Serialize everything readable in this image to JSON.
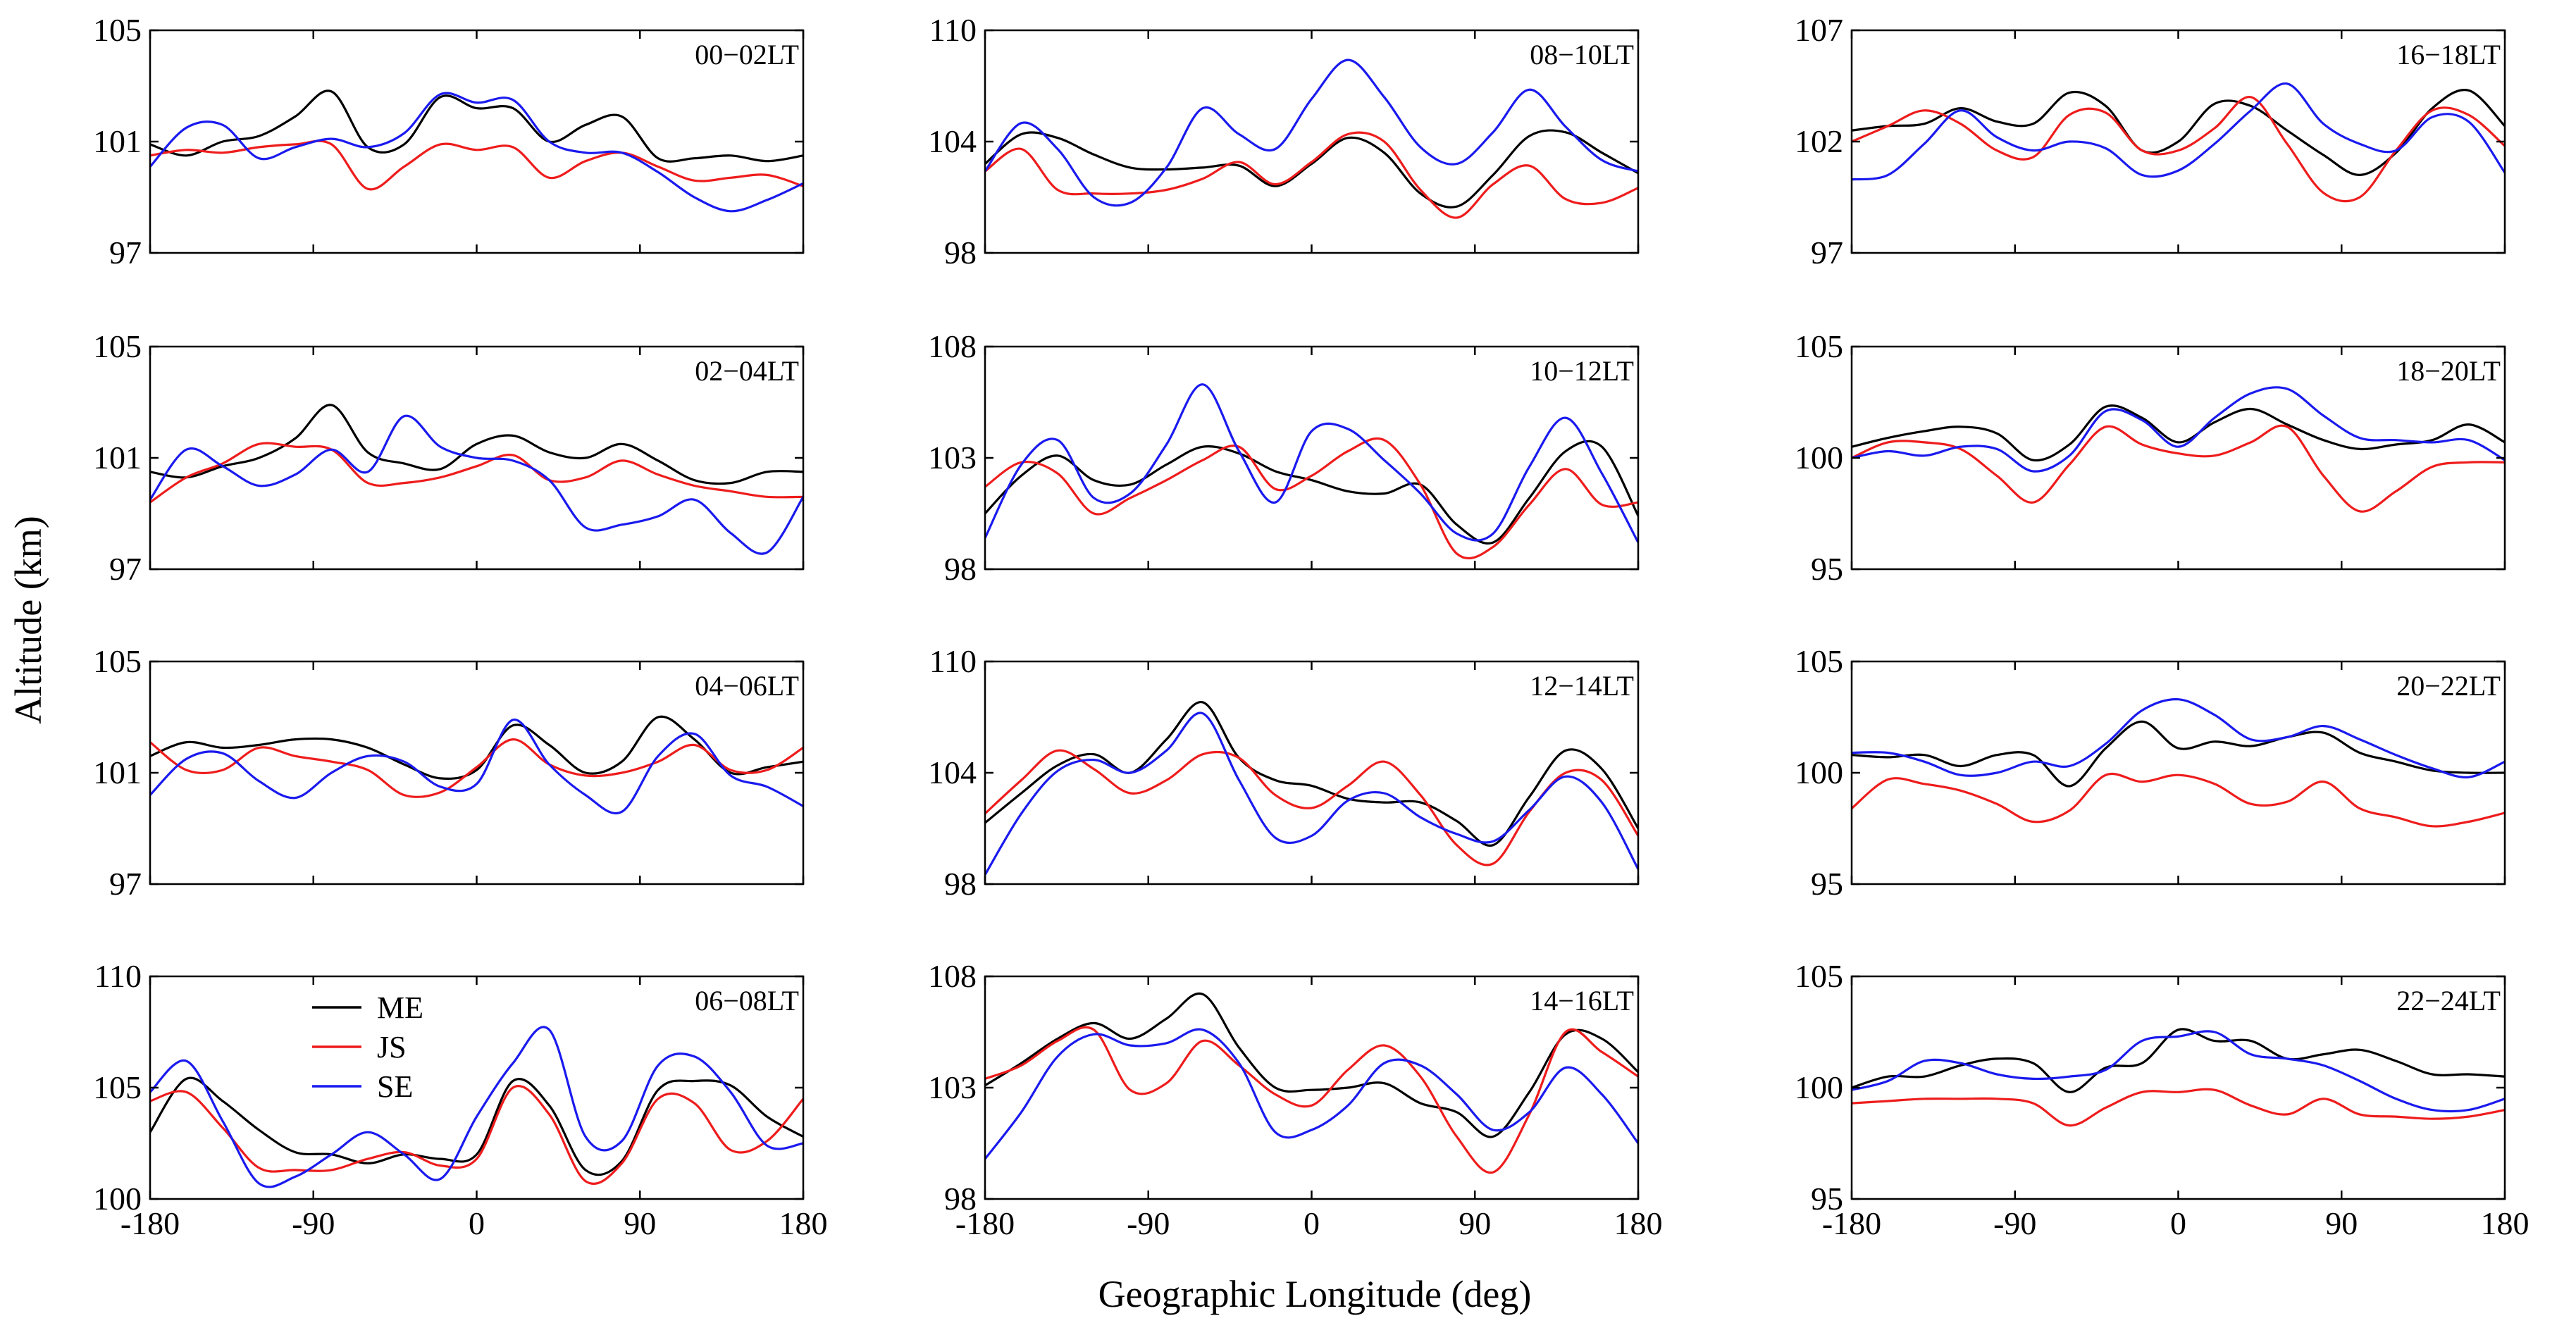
{
  "chart_data": {
    "type": "line",
    "layout": "4x3 grid of small-multiple panels (columns left to right, rows top to bottom)",
    "ylabel": "Altitude (km)",
    "xlabel": "Geographic Longitude (deg)",
    "x": [
      -180,
      -160,
      -140,
      -120,
      -100,
      -80,
      -60,
      -40,
      -20,
      0,
      20,
      40,
      60,
      80,
      100,
      120,
      140,
      160,
      180
    ],
    "xticks": [
      -180,
      -90,
      0,
      90,
      180
    ],
    "xtick_labels": [
      "-180",
      "-90",
      "0",
      "90",
      "180"
    ],
    "legend": {
      "panel": "06-08LT",
      "placement": "upper-left",
      "entries": [
        {
          "key": "ME",
          "label": "ME"
        },
        {
          "key": "JS",
          "label": "JS"
        },
        {
          "key": "SE",
          "label": "SE"
        }
      ]
    },
    "series_colors": {
      "ME": "#000000",
      "JS": "#ee1c1c",
      "SE": "#1a1aee"
    },
    "panels": [
      {
        "id": "p00",
        "label": "00−02LT",
        "col": 0,
        "row": 0,
        "ylim": [
          97,
          105
        ],
        "yticks": [
          97,
          101,
          105
        ],
        "series": {
          "ME": [
            100.9,
            100.5,
            101.0,
            101.2,
            101.9,
            102.8,
            100.8,
            100.9,
            102.6,
            102.2,
            102.2,
            101.0,
            101.6,
            101.9,
            100.4,
            100.4,
            100.5,
            100.3,
            100.5
          ],
          "JS": [
            100.5,
            100.7,
            100.6,
            100.8,
            100.9,
            100.9,
            99.3,
            100.1,
            100.9,
            100.7,
            100.8,
            99.7,
            100.3,
            100.6,
            100.1,
            99.6,
            99.7,
            99.8,
            99.4
          ],
          "SE": [
            100.1,
            101.5,
            101.6,
            100.4,
            100.8,
            101.1,
            100.8,
            101.3,
            102.7,
            102.4,
            102.5,
            101.0,
            100.6,
            100.6,
            99.9,
            99.0,
            98.5,
            98.9,
            99.5
          ]
        }
      },
      {
        "id": "p01",
        "label": "02−04LT",
        "col": 0,
        "row": 1,
        "ylim": [
          97,
          105
        ],
        "yticks": [
          97,
          101,
          105
        ],
        "series": {
          "ME": [
            100.5,
            100.3,
            100.7,
            101.0,
            101.7,
            102.9,
            101.2,
            100.8,
            100.6,
            101.5,
            101.8,
            101.2,
            101.0,
            101.5,
            100.9,
            100.2,
            100.1,
            100.5,
            100.5
          ],
          "JS": [
            99.4,
            100.3,
            100.8,
            101.5,
            101.4,
            101.3,
            100.1,
            100.1,
            100.3,
            100.7,
            101.1,
            100.2,
            100.3,
            100.9,
            100.4,
            100.0,
            99.8,
            99.6,
            99.6
          ],
          "SE": [
            99.5,
            101.3,
            100.7,
            100.0,
            100.4,
            101.3,
            100.5,
            102.5,
            101.4,
            101.0,
            100.9,
            100.2,
            98.5,
            98.6,
            98.9,
            99.5,
            98.3,
            97.6,
            99.6
          ]
        }
      },
      {
        "id": "p02",
        "label": "04−06LT",
        "col": 0,
        "row": 2,
        "ylim": [
          97,
          105
        ],
        "yticks": [
          97,
          101,
          105
        ],
        "series": {
          "ME": [
            101.6,
            102.1,
            101.9,
            102.0,
            102.2,
            102.2,
            101.9,
            101.3,
            100.8,
            101.1,
            102.7,
            102.0,
            101.0,
            101.4,
            103.0,
            102.2,
            101.0,
            101.2,
            101.4
          ],
          "JS": [
            102.1,
            101.1,
            101.1,
            101.9,
            101.6,
            101.4,
            101.1,
            100.2,
            100.3,
            101.2,
            102.2,
            101.3,
            100.9,
            101.0,
            101.4,
            102.0,
            101.1,
            101.1,
            101.9
          ],
          "SE": [
            100.2,
            101.5,
            101.7,
            100.7,
            100.1,
            101.0,
            101.6,
            101.4,
            100.5,
            100.6,
            102.9,
            101.3,
            100.2,
            99.6,
            101.6,
            102.4,
            100.9,
            100.5,
            99.8
          ]
        }
      },
      {
        "id": "p03",
        "label": "06−08LT",
        "col": 0,
        "row": 3,
        "ylim": [
          100,
          110
        ],
        "yticks": [
          100,
          105,
          110
        ],
        "series": {
          "ME": [
            103.0,
            105.4,
            104.4,
            103.1,
            102.1,
            102.0,
            101.6,
            102.0,
            101.8,
            102.0,
            105.3,
            104.2,
            101.3,
            101.7,
            104.9,
            105.3,
            105.1,
            103.7,
            102.8
          ],
          "JS": [
            104.4,
            104.8,
            103.2,
            101.4,
            101.3,
            101.3,
            101.8,
            102.1,
            101.5,
            101.8,
            105.0,
            103.8,
            100.8,
            101.6,
            104.5,
            104.3,
            102.2,
            102.6,
            104.5
          ],
          "SE": [
            104.8,
            106.2,
            103.5,
            100.7,
            101.0,
            102.0,
            103.0,
            102.0,
            100.9,
            103.7,
            106.1,
            107.6,
            102.8,
            102.6,
            106.0,
            106.4,
            104.8,
            102.4,
            102.5
          ]
        }
      },
      {
        "id": "p10",
        "label": "08−10LT",
        "col": 1,
        "row": 0,
        "ylim": [
          98,
          110
        ],
        "yticks": [
          98,
          104,
          110
        ],
        "series": {
          "ME": [
            102.8,
            104.4,
            104.2,
            103.3,
            102.6,
            102.5,
            102.6,
            102.7,
            101.6,
            102.8,
            104.2,
            103.4,
            101.2,
            100.5,
            102.2,
            104.3,
            104.5,
            103.4,
            102.3
          ],
          "JS": [
            102.4,
            103.6,
            101.4,
            101.2,
            101.2,
            101.4,
            102.0,
            102.9,
            101.7,
            102.9,
            104.4,
            104.0,
            101.4,
            99.9,
            101.7,
            102.7,
            100.9,
            100.7,
            101.5
          ],
          "SE": [
            102.4,
            105.0,
            103.6,
            101.0,
            100.7,
            102.6,
            105.8,
            104.4,
            103.6,
            106.3,
            108.4,
            106.4,
            103.7,
            102.8,
            104.5,
            106.8,
            104.8,
            103.0,
            102.4
          ]
        }
      },
      {
        "id": "p11",
        "label": "10−12LT",
        "col": 1,
        "row": 1,
        "ylim": [
          98,
          108
        ],
        "yticks": [
          98,
          103,
          108
        ],
        "series": {
          "ME": [
            100.5,
            102.2,
            103.1,
            102.0,
            101.8,
            102.7,
            103.5,
            103.2,
            102.4,
            102.0,
            101.5,
            101.4,
            101.8,
            100.0,
            99.2,
            101.2,
            103.3,
            103.5,
            100.4
          ],
          "JS": [
            101.7,
            102.8,
            102.3,
            100.5,
            101.2,
            102.0,
            102.9,
            103.5,
            101.6,
            102.2,
            103.3,
            103.8,
            101.8,
            98.7,
            99.0,
            100.9,
            102.5,
            100.9,
            101.0
          ],
          "SE": [
            99.4,
            102.7,
            103.8,
            101.2,
            101.4,
            103.6,
            106.3,
            103.3,
            101.0,
            104.2,
            104.3,
            102.9,
            101.4,
            99.6,
            99.6,
            102.6,
            104.8,
            102.3,
            99.2
          ]
        }
      },
      {
        "id": "p12",
        "label": "12−14LT",
        "col": 1,
        "row": 2,
        "ylim": [
          98,
          110
        ],
        "yticks": [
          98,
          104,
          110
        ],
        "series": {
          "ME": [
            101.3,
            102.9,
            104.4,
            105.0,
            104.0,
            105.8,
            107.8,
            104.8,
            103.6,
            103.3,
            102.6,
            102.4,
            102.4,
            101.4,
            100.1,
            102.7,
            105.2,
            104.2,
            101.0
          ],
          "JS": [
            101.8,
            103.6,
            105.2,
            104.2,
            102.9,
            103.6,
            105.0,
            104.8,
            102.8,
            102.1,
            103.3,
            104.6,
            102.8,
            100.1,
            99.1,
            101.9,
            104.0,
            103.6,
            100.6
          ],
          "SE": [
            98.5,
            101.8,
            104.1,
            104.7,
            104.0,
            105.2,
            107.2,
            103.6,
            100.5,
            100.6,
            102.5,
            102.9,
            101.6,
            100.7,
            100.3,
            102.0,
            103.8,
            102.4,
            98.8
          ]
        }
      },
      {
        "id": "p13",
        "label": "14−16LT",
        "col": 1,
        "row": 3,
        "ylim": [
          98,
          108
        ],
        "yticks": [
          98,
          103,
          108
        ],
        "series": {
          "ME": [
            103.1,
            104.1,
            105.2,
            105.9,
            105.2,
            106.1,
            107.2,
            104.8,
            103.0,
            102.9,
            103.0,
            103.2,
            102.3,
            101.9,
            100.8,
            102.8,
            105.4,
            105.2,
            103.7
          ],
          "JS": [
            103.4,
            104.0,
            105.1,
            105.6,
            102.9,
            103.2,
            105.1,
            104.0,
            102.7,
            102.2,
            103.8,
            104.9,
            103.5,
            100.8,
            99.2,
            101.8,
            105.5,
            104.6,
            103.5
          ],
          "SE": [
            99.8,
            101.9,
            104.4,
            105.4,
            104.9,
            105.0,
            105.6,
            104.1,
            101.0,
            101.1,
            102.2,
            104.1,
            104.0,
            102.7,
            101.1,
            101.9,
            103.9,
            102.7,
            100.5
          ]
        }
      },
      {
        "id": "p20",
        "label": "16−18LT",
        "col": 2,
        "row": 0,
        "ylim": [
          97,
          107
        ],
        "yticks": [
          97,
          102,
          107
        ],
        "series": {
          "ME": [
            102.5,
            102.7,
            102.8,
            103.5,
            102.9,
            102.8,
            104.2,
            103.6,
            101.6,
            102.0,
            103.7,
            103.6,
            102.5,
            101.4,
            100.5,
            101.5,
            103.5,
            104.3,
            102.7
          ],
          "JS": [
            102.0,
            102.7,
            103.4,
            102.8,
            101.6,
            101.3,
            103.2,
            103.3,
            101.6,
            101.6,
            102.6,
            104.0,
            101.9,
            99.7,
            99.5,
            101.6,
            103.4,
            103.2,
            101.8
          ],
          "SE": [
            100.3,
            100.5,
            101.9,
            103.4,
            102.2,
            101.6,
            102.0,
            101.7,
            100.5,
            100.7,
            101.9,
            103.4,
            104.6,
            102.8,
            101.9,
            101.6,
            103.1,
            102.9,
            100.6
          ]
        }
      },
      {
        "id": "p21",
        "label": "18−20LT",
        "col": 2,
        "row": 1,
        "ylim": [
          95,
          105
        ],
        "yticks": [
          95,
          100,
          105
        ],
        "series": {
          "ME": [
            100.5,
            100.9,
            101.2,
            101.4,
            101.1,
            99.9,
            100.6,
            102.3,
            101.8,
            100.7,
            101.6,
            102.2,
            101.5,
            100.8,
            100.4,
            100.6,
            100.8,
            101.5,
            100.7
          ],
          "JS": [
            100.0,
            100.7,
            100.7,
            100.4,
            99.2,
            98.0,
            99.7,
            101.4,
            100.6,
            100.2,
            100.1,
            100.7,
            101.4,
            99.2,
            97.6,
            98.5,
            99.6,
            99.8,
            99.8
          ],
          "SE": [
            100.0,
            100.3,
            100.1,
            100.5,
            100.4,
            99.4,
            100.1,
            102.1,
            101.7,
            100.5,
            101.8,
            102.9,
            103.1,
            101.9,
            100.9,
            100.8,
            100.7,
            100.8,
            99.9
          ]
        }
      },
      {
        "id": "p22",
        "label": "20−22LT",
        "col": 2,
        "row": 2,
        "ylim": [
          95,
          105
        ],
        "yticks": [
          95,
          100,
          105
        ],
        "series": {
          "ME": [
            100.8,
            100.7,
            100.8,
            100.3,
            100.8,
            100.8,
            99.4,
            101.1,
            102.3,
            101.1,
            101.4,
            101.2,
            101.6,
            101.8,
            100.9,
            100.5,
            100.1,
            100.0,
            100.0
          ],
          "JS": [
            98.4,
            99.7,
            99.5,
            99.2,
            98.6,
            97.8,
            98.3,
            99.9,
            99.6,
            99.9,
            99.5,
            98.6,
            98.7,
            99.6,
            98.4,
            98.0,
            97.6,
            97.8,
            98.2
          ],
          "SE": [
            100.9,
            100.9,
            100.5,
            99.9,
            100.0,
            100.5,
            100.3,
            101.3,
            102.8,
            103.3,
            102.6,
            101.5,
            101.6,
            102.1,
            101.5,
            100.8,
            100.2,
            99.8,
            100.5
          ]
        }
      },
      {
        "id": "p23",
        "label": "22−24LT",
        "col": 2,
        "row": 3,
        "ylim": [
          95,
          105
        ],
        "yticks": [
          95,
          100,
          105
        ],
        "series": {
          "ME": [
            100.0,
            100.5,
            100.5,
            101.0,
            101.3,
            101.1,
            99.8,
            100.9,
            101.1,
            102.6,
            102.1,
            102.1,
            101.3,
            101.5,
            101.7,
            101.2,
            100.6,
            100.6,
            100.5
          ],
          "JS": [
            99.3,
            99.4,
            99.5,
            99.5,
            99.5,
            99.3,
            98.3,
            99.1,
            99.8,
            99.8,
            99.9,
            99.2,
            98.8,
            99.5,
            98.8,
            98.7,
            98.6,
            98.7,
            99.0
          ],
          "SE": [
            99.9,
            100.3,
            101.2,
            101.1,
            100.6,
            100.4,
            100.5,
            100.8,
            102.1,
            102.3,
            102.5,
            101.5,
            101.3,
            101.0,
            100.3,
            99.5,
            99.0,
            99.0,
            99.5
          ]
        }
      }
    ]
  }
}
